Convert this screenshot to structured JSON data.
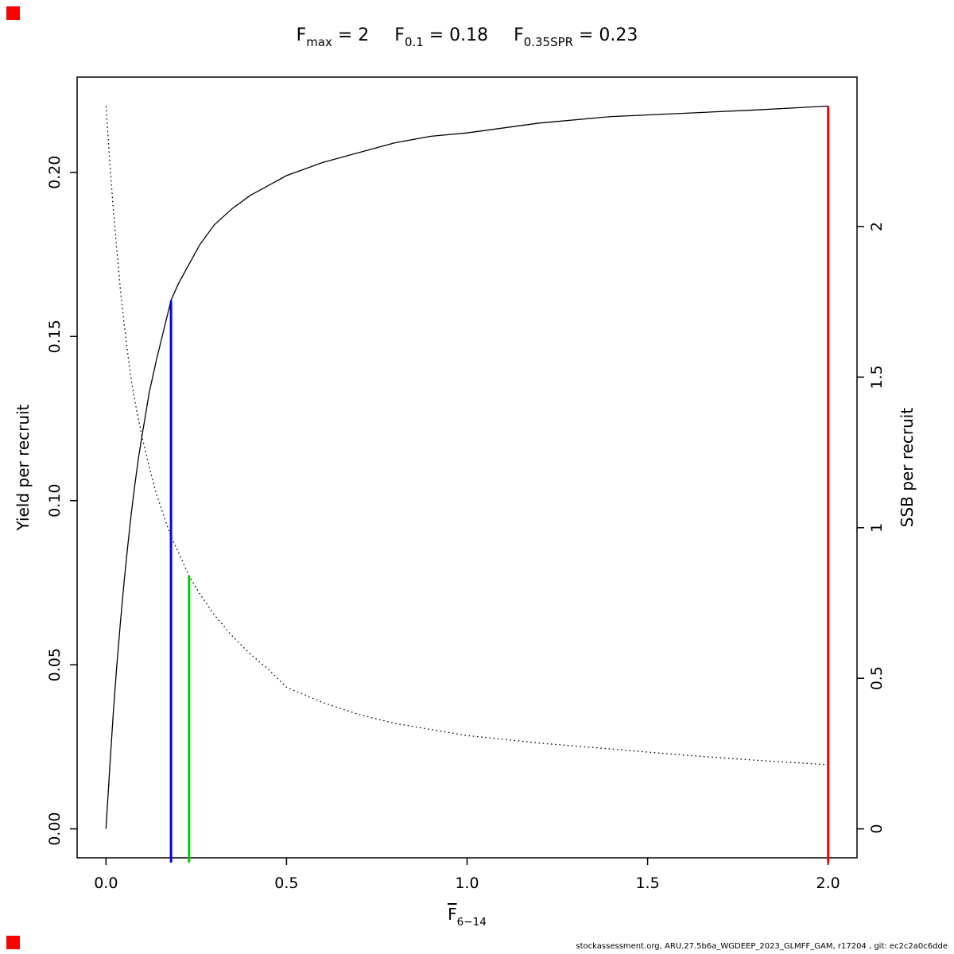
{
  "page": {
    "background": "#ffffff",
    "corner_marker_color": "#ff0000",
    "footer_text": "stockassessment.org, ARU.27.5b6a_WGDEEP_2023_GLMFF_GAM, r17204 , git: ec2c2a0c6dde"
  },
  "title": {
    "parts": [
      {
        "base": "F",
        "sub": "max",
        "value": "2"
      },
      {
        "base": "F",
        "sub": "0.1",
        "value": "0.18"
      },
      {
        "base": "F",
        "sub": "0.35SPR",
        "value": "0.23"
      }
    ]
  },
  "chart_data": {
    "type": "line",
    "title": "Fmax = 2    F0.1 = 0.18    F0.35SPR = 0.23",
    "xlabel": {
      "base": "F",
      "overline": true,
      "sub": "6−14"
    },
    "ylabel_left": "Yield per recruit",
    "ylabel_right": "SSB per recruit",
    "xlim": [
      0,
      2
    ],
    "ylim_left": [
      0,
      0.2202
    ],
    "ylim_right": [
      0,
      2.4
    ],
    "grid": false,
    "x_ticks": [
      {
        "value": 0,
        "label": "0.0"
      },
      {
        "value": 0.5,
        "label": "0.5"
      },
      {
        "value": 1,
        "label": "1.0"
      },
      {
        "value": 1.5,
        "label": "1.5"
      },
      {
        "value": 2,
        "label": "2.0"
      }
    ],
    "y_ticks_left": [
      {
        "value": 0,
        "label": "0.00"
      },
      {
        "value": 0.05,
        "label": "0.05"
      },
      {
        "value": 0.1,
        "label": "0.10"
      },
      {
        "value": 0.15,
        "label": "0.15"
      },
      {
        "value": 0.2,
        "label": "0.20"
      }
    ],
    "y_ticks_right": [
      {
        "value": 0,
        "label": "0"
      },
      {
        "value": 0.5,
        "label": "0.5"
      },
      {
        "value": 1,
        "label": "1"
      },
      {
        "value": 1.5,
        "label": "1.5"
      },
      {
        "value": 2,
        "label": "2"
      }
    ],
    "series": [
      {
        "name": "yield-per-recruit",
        "axis": "left",
        "style": "solid",
        "color": "#000000",
        "x": [
          0,
          0.01,
          0.02,
          0.03,
          0.04,
          0.05,
          0.06,
          0.07,
          0.08,
          0.09,
          0.1,
          0.12,
          0.14,
          0.16,
          0.18,
          0.2,
          0.23,
          0.26,
          0.3,
          0.35,
          0.4,
          0.45,
          0.5,
          0.6,
          0.7,
          0.8,
          0.9,
          1.0,
          1.2,
          1.4,
          1.6,
          1.8,
          2.0
        ],
        "y": [
          0,
          0.018,
          0.035,
          0.05,
          0.063,
          0.075,
          0.086,
          0.096,
          0.105,
          0.113,
          0.12,
          0.133,
          0.143,
          0.152,
          0.161,
          0.166,
          0.172,
          0.178,
          0.184,
          0.189,
          0.193,
          0.196,
          0.199,
          0.203,
          0.206,
          0.209,
          0.211,
          0.212,
          0.215,
          0.217,
          0.218,
          0.219,
          0.2202
        ]
      },
      {
        "name": "ssb-per-recruit",
        "axis": "right",
        "style": "dotted",
        "color": "#000000",
        "x": [
          0,
          0.01,
          0.02,
          0.03,
          0.04,
          0.05,
          0.06,
          0.07,
          0.08,
          0.09,
          0.1,
          0.12,
          0.14,
          0.16,
          0.18,
          0.2,
          0.23,
          0.26,
          0.3,
          0.35,
          0.4,
          0.45,
          0.5,
          0.6,
          0.7,
          0.8,
          0.9,
          1.0,
          1.2,
          1.4,
          1.6,
          1.8,
          2.0
        ],
        "y": [
          2.4,
          2.22,
          2.06,
          1.92,
          1.79,
          1.68,
          1.58,
          1.49,
          1.42,
          1.36,
          1.3,
          1.2,
          1.11,
          1.04,
          0.97,
          0.92,
          0.84,
          0.78,
          0.71,
          0.64,
          0.58,
          0.53,
          0.47,
          0.42,
          0.38,
          0.35,
          0.33,
          0.31,
          0.285,
          0.265,
          0.245,
          0.228,
          0.213
        ]
      }
    ],
    "reference_lines": [
      {
        "name": "F0-1",
        "x": 0.18,
        "top": 0.161,
        "axis": "left",
        "color": "#0000ff"
      },
      {
        "name": "F0-35SPR",
        "x": 0.23,
        "top": 0.84,
        "axis": "right",
        "color": "#00cd00"
      },
      {
        "name": "Fmax",
        "x": 2.0,
        "top": 0.2202,
        "axis": "left",
        "color": "#ff0000"
      }
    ],
    "legend": null
  }
}
